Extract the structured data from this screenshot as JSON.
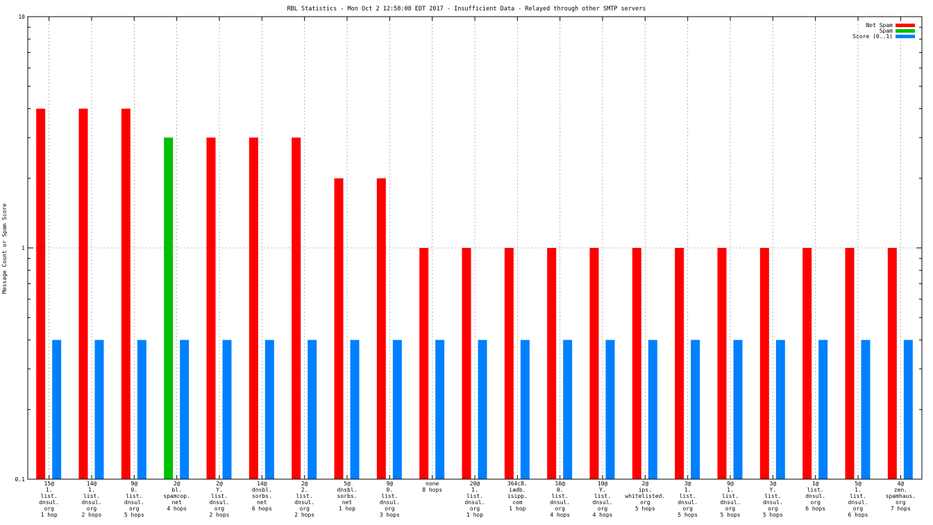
{
  "chart_data": {
    "type": "bar",
    "title": "RBL Statistics - Mon Oct  2 12:58:08 EDT 2017 - Insufficient Data - Relayed through other SMTP servers",
    "ylabel": "Message Count or Spam Score",
    "yscale": "log",
    "ylim": [
      0.1,
      10
    ],
    "ytick_labels": [
      "10",
      "1",
      "0.1"
    ],
    "legend_position": "top-right",
    "colors": {
      "not_spam": "#ff0000",
      "spam": "#00c000",
      "score": "#0080ff"
    },
    "categories": [
      [
        "15@",
        "1.",
        "list.",
        "dnsul.",
        "org",
        "1 hop"
      ],
      [
        "14@",
        "1.",
        "list.",
        "dnsul.",
        "org",
        "2 hops"
      ],
      [
        "9@",
        "0.",
        "list.",
        "dnsul.",
        "org",
        "5 hops"
      ],
      [
        "2@",
        "bl.",
        "spamcop.",
        "net",
        "4 hops"
      ],
      [
        "2@",
        "Y.",
        "list.",
        "dnsul.",
        "org",
        "2 hops"
      ],
      [
        "14@",
        "dnsbl.",
        "sorbs.",
        "net",
        "6 hops"
      ],
      [
        "2@",
        "2.",
        "list.",
        "dnsul.",
        "org",
        "2 hops"
      ],
      [
        "5@",
        "dnsbl.",
        "sorbs.",
        "net",
        "1 hop"
      ],
      [
        "9@",
        "0.",
        "list.",
        "dnsul.",
        "org",
        "3 hops"
      ],
      [
        "none",
        "8 hops"
      ],
      [
        "20@",
        "1.",
        "list.",
        "dnsul.",
        "org",
        "1 hop"
      ],
      [
        "364c8.",
        "iadb.",
        "isipp.",
        "com",
        "1 hop"
      ],
      [
        "10@",
        "0.",
        "list.",
        "dnsul.",
        "org",
        "4 hops"
      ],
      [
        "10@",
        "Y.",
        "list.",
        "dnsul.",
        "org",
        "4 hops"
      ],
      [
        "2@",
        "ips.",
        "whitelisted.",
        "org",
        "5 hops"
      ],
      [
        "3@",
        "1.",
        "list.",
        "dnsul.",
        "org",
        "5 hops"
      ],
      [
        "9@",
        "1.",
        "list.",
        "dnsul.",
        "org",
        "5 hops"
      ],
      [
        "3@",
        "Y.",
        "list.",
        "dnsul.",
        "org",
        "5 hops"
      ],
      [
        "1@",
        "list.",
        "dnsul.",
        "org",
        "6 hops"
      ],
      [
        "5@",
        "1.",
        "list.",
        "dnsul.",
        "org",
        "6 hops"
      ],
      [
        "4@",
        "zen.",
        "spamhaus.",
        "org",
        "7 hops"
      ]
    ],
    "series": [
      {
        "name": "Not Spam",
        "color": "#ff0000",
        "values": [
          4,
          4,
          4,
          0,
          3,
          3,
          3,
          2,
          2,
          1,
          1,
          1,
          1,
          1,
          1,
          1,
          1,
          1,
          1,
          1,
          1
        ]
      },
      {
        "name": "Spam",
        "color": "#00c000",
        "values": [
          0,
          0,
          0,
          3,
          0,
          0,
          0,
          0,
          0,
          0,
          0,
          0,
          0,
          0,
          0,
          0,
          0,
          0,
          0,
          0,
          0
        ]
      },
      {
        "name": "Score (0..1)",
        "color": "#0080ff",
        "values": [
          0.4,
          0.4,
          0.4,
          0.4,
          0.4,
          0.4,
          0.4,
          0.4,
          0.4,
          0.4,
          0.4,
          0.4,
          0.4,
          0.4,
          0.4,
          0.4,
          0.4,
          0.4,
          0.4,
          0.4,
          0.4
        ]
      }
    ]
  }
}
